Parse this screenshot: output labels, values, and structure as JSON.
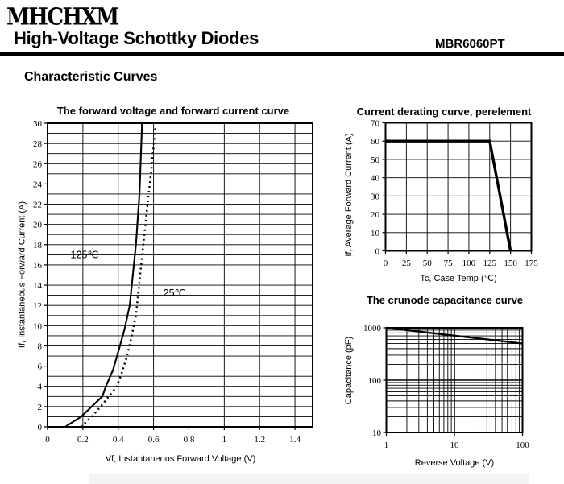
{
  "page": {
    "logo": "MHCHXM",
    "title": "High-Voltage Schottky Diodes",
    "part_number": "MBR6060PT",
    "section_heading": "Characteristic Curves"
  },
  "chart_data": [
    {
      "id": "forward-voltage-forward-current",
      "type": "line",
      "title": "The forward voltage and forward current curve",
      "xlabel": "Vf, Instantaneous Forward Voltage (V)",
      "ylabel": "If, Instantaneous Forward Current (A)",
      "x_scale": "linear",
      "y_scale": "linear",
      "xlim": [
        0,
        1.5
      ],
      "ylim": [
        0,
        30
      ],
      "x_grid_step": 0.2,
      "y_grid_step": 1,
      "grid": true,
      "legend_position": "inline-annotations",
      "x_ticks": [
        {
          "v": 0,
          "t": "0"
        },
        {
          "v": 0.2,
          "t": "0.2"
        },
        {
          "v": 0.4,
          "t": "0.4"
        },
        {
          "v": 0.6,
          "t": "0.6"
        },
        {
          "v": 0.8,
          "t": "0.8"
        },
        {
          "v": 1,
          "t": "1"
        },
        {
          "v": 1.2,
          "t": "1.2"
        },
        {
          "v": 1.4,
          "t": "1.4"
        }
      ],
      "y_ticks": [
        {
          "v": 0,
          "t": "0"
        },
        {
          "v": 2,
          "t": "2"
        },
        {
          "v": 4,
          "t": "4"
        },
        {
          "v": 6,
          "t": "6"
        },
        {
          "v": 8,
          "t": "8"
        },
        {
          "v": 10,
          "t": "10"
        },
        {
          "v": 12,
          "t": "12"
        },
        {
          "v": 14,
          "t": "14"
        },
        {
          "v": 16,
          "t": "16"
        },
        {
          "v": 18,
          "t": "18"
        },
        {
          "v": 20,
          "t": "20"
        },
        {
          "v": 22,
          "t": "22"
        },
        {
          "v": 24,
          "t": "24"
        },
        {
          "v": 26,
          "t": "26"
        },
        {
          "v": 28,
          "t": "28"
        },
        {
          "v": 30,
          "t": "30"
        }
      ],
      "series": [
        {
          "name": "125℃",
          "line": "solid",
          "width": 2.1,
          "points": [
            [
              0.1,
              0
            ],
            [
              0.19,
              1
            ],
            [
              0.25,
              2
            ],
            [
              0.31,
              3
            ],
            [
              0.33,
              4
            ],
            [
              0.37,
              5.6
            ],
            [
              0.405,
              7.7
            ],
            [
              0.435,
              9.6
            ],
            [
              0.465,
              12
            ],
            [
              0.5,
              18
            ],
            [
              0.52,
              23
            ],
            [
              0.535,
              30
            ]
          ],
          "label": {
            "text": "125℃",
            "x": 0.13,
            "y": 17.0
          }
        },
        {
          "name": "25℃",
          "line": "dotted",
          "width": 2.5,
          "points": [
            [
              0.19,
              0
            ],
            [
              0.25,
              1
            ],
            [
              0.31,
              2.2
            ],
            [
              0.36,
              3.3
            ],
            [
              0.39,
              3.9
            ],
            [
              0.42,
              5.3
            ],
            [
              0.45,
              7
            ],
            [
              0.475,
              8.9
            ],
            [
              0.5,
              11
            ],
            [
              0.53,
              16
            ],
            [
              0.56,
              21
            ],
            [
              0.585,
              25
            ],
            [
              0.61,
              29.5
            ]
          ],
          "label": {
            "text": "25℃",
            "x": 0.655,
            "y": 13.2
          }
        }
      ]
    },
    {
      "id": "current-derating",
      "type": "line",
      "title": "Current derating curve, perelement",
      "xlabel": "Tc, Case Temp (℃)",
      "ylabel": "If, Average Forward Current (A)",
      "x_scale": "linear",
      "y_scale": "linear",
      "xlim": [
        0,
        175
      ],
      "ylim": [
        0,
        70
      ],
      "x_grid_step": 25,
      "y_grid_step": 10,
      "grid": true,
      "x_ticks": [
        {
          "v": 0,
          "t": "0"
        },
        {
          "v": 25,
          "t": "25"
        },
        {
          "v": 50,
          "t": "50"
        },
        {
          "v": 75,
          "t": "75"
        },
        {
          "v": 100,
          "t": "100"
        },
        {
          "v": 125,
          "t": "125"
        },
        {
          "v": 150,
          "t": "150"
        },
        {
          "v": 175,
          "t": "175"
        }
      ],
      "y_ticks": [
        {
          "v": 0,
          "t": "0"
        },
        {
          "v": 10,
          "t": "10"
        },
        {
          "v": 20,
          "t": "20"
        },
        {
          "v": 30,
          "t": "30"
        },
        {
          "v": 40,
          "t": "40"
        },
        {
          "v": 50,
          "t": "50"
        },
        {
          "v": 60,
          "t": "60"
        },
        {
          "v": 70,
          "t": "70"
        }
      ],
      "series": [
        {
          "name": "derating",
          "line": "solid",
          "width": 3.4,
          "points": [
            [
              0,
              60
            ],
            [
              125,
              60
            ],
            [
              150,
              0
            ]
          ]
        }
      ]
    },
    {
      "id": "crunode-capacitance",
      "type": "line",
      "title": "The crunode capacitance curve",
      "xlabel": "Reverse Voltage (V)",
      "ylabel": "Capacitance (pF)",
      "x_scale": "log",
      "y_scale": "log",
      "xlim": [
        1,
        100
      ],
      "ylim": [
        10,
        1000
      ],
      "grid": true,
      "x_ticks": [
        {
          "v": 1,
          "t": "1"
        },
        {
          "v": 10,
          "t": "10"
        },
        {
          "v": 100,
          "t": "100"
        }
      ],
      "y_ticks": [
        {
          "v": 10,
          "t": "10"
        },
        {
          "v": 100,
          "t": "100"
        },
        {
          "v": 1000,
          "t": "1000"
        }
      ],
      "series": [
        {
          "name": "capacitance",
          "line": "solid",
          "width": 2.3,
          "points": [
            [
              1,
              1000
            ],
            [
              2,
              900
            ],
            [
              3,
              850
            ],
            [
              5,
              785
            ],
            [
              7,
              745
            ],
            [
              10,
              707
            ],
            [
              20,
              637
            ],
            [
              30,
              600
            ],
            [
              50,
              555
            ],
            [
              70,
              528
            ],
            [
              100,
              500
            ]
          ]
        }
      ]
    }
  ]
}
